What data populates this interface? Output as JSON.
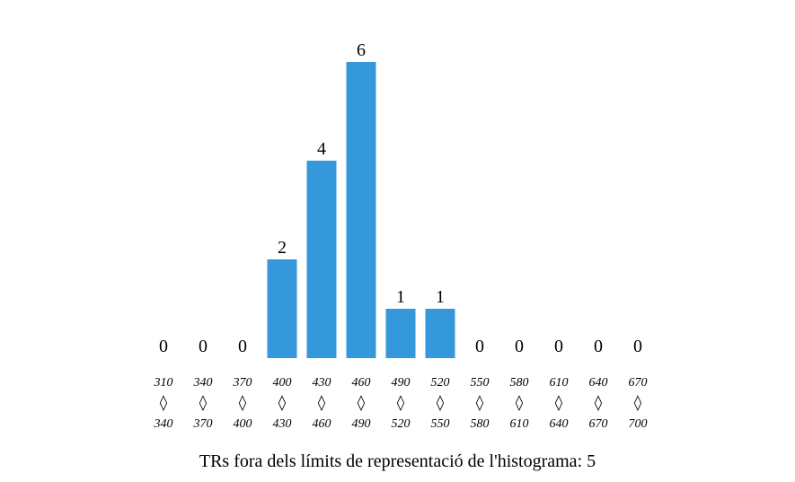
{
  "chart_data": {
    "type": "bar",
    "categories": [
      "310-340",
      "340-370",
      "370-400",
      "400-430",
      "430-460",
      "460-490",
      "490-520",
      "520-550",
      "550-580",
      "580-610",
      "610-640",
      "640-670",
      "670-700"
    ],
    "bins": [
      {
        "from": "310",
        "to": "340"
      },
      {
        "from": "340",
        "to": "370"
      },
      {
        "from": "370",
        "to": "400"
      },
      {
        "from": "400",
        "to": "430"
      },
      {
        "from": "430",
        "to": "460"
      },
      {
        "from": "460",
        "to": "490"
      },
      {
        "from": "490",
        "to": "520"
      },
      {
        "from": "520",
        "to": "550"
      },
      {
        "from": "550",
        "to": "580"
      },
      {
        "from": "580",
        "to": "610"
      },
      {
        "from": "610",
        "to": "640"
      },
      {
        "from": "640",
        "to": "670"
      },
      {
        "from": "670",
        "to": "700"
      }
    ],
    "values": [
      0,
      0,
      0,
      2,
      4,
      6,
      1,
      1,
      0,
      0,
      0,
      0,
      0
    ],
    "range_separator": "◊",
    "bar_color": "#3498db",
    "title": "",
    "xlabel": "",
    "ylabel": "",
    "ylim": [
      0,
      6
    ],
    "grid": false,
    "legend": "none"
  },
  "footer": {
    "text": "TRs fora dels límits de representació de l'histograma: 5"
  }
}
